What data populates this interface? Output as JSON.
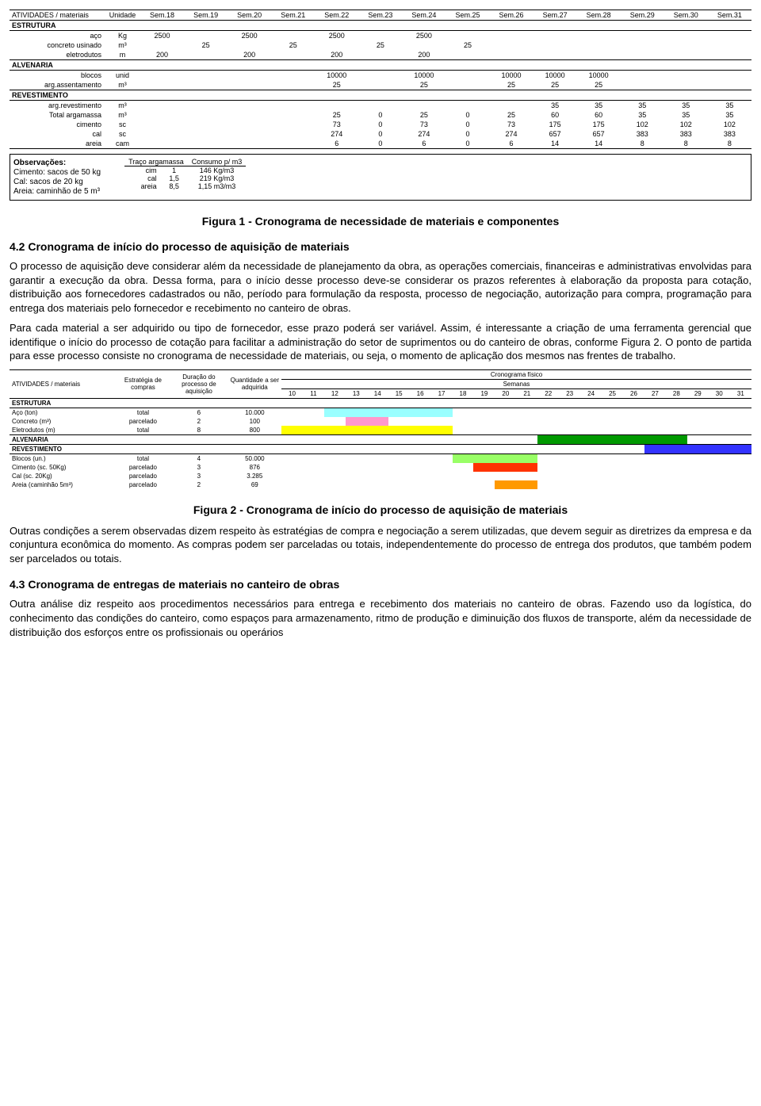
{
  "table1": {
    "col_activity": "ATIVIDADES / materiais",
    "col_unit": "Unidade",
    "weeks": [
      "Sem.18",
      "Sem.19",
      "Sem.20",
      "Sem.21",
      "Sem.22",
      "Sem.23",
      "Sem.24",
      "Sem.25",
      "Sem.26",
      "Sem.27",
      "Sem.28",
      "Sem.29",
      "Sem.30",
      "Sem.31"
    ],
    "sections": [
      {
        "name": "ESTRUTURA",
        "rows": [
          {
            "label": "aço",
            "unit": "Kg",
            "vals": [
              "2500",
              "",
              "2500",
              "",
              "2500",
              "",
              "2500",
              "",
              "",
              "",
              "",
              "",
              "",
              ""
            ]
          },
          {
            "label": "concreto usinado",
            "unit": "m³",
            "vals": [
              "",
              "25",
              "",
              "25",
              "",
              "25",
              "",
              "25",
              "",
              "",
              "",
              "",
              "",
              ""
            ]
          },
          {
            "label": "eletrodutos",
            "unit": "m",
            "vals": [
              "200",
              "",
              "200",
              "",
              "200",
              "",
              "200",
              "",
              "",
              "",
              "",
              "",
              "",
              ""
            ]
          }
        ]
      },
      {
        "name": "ALVENARIA",
        "rows": [
          {
            "label": "blocos",
            "unit": "unid",
            "vals": [
              "",
              "",
              "",
              "",
              "10000",
              "",
              "10000",
              "",
              "10000",
              "10000",
              "10000",
              "",
              "",
              ""
            ]
          },
          {
            "label": "arg.assentamento",
            "unit": "m³",
            "vals": [
              "",
              "",
              "",
              "",
              "25",
              "",
              "25",
              "",
              "25",
              "25",
              "25",
              "",
              "",
              ""
            ]
          }
        ]
      },
      {
        "name": "REVESTIMENTO",
        "rows": [
          {
            "label": "arg.revestimento",
            "unit": "m³",
            "vals": [
              "",
              "",
              "",
              "",
              "",
              "",
              "",
              "",
              "",
              "35",
              "35",
              "35",
              "35",
              "35"
            ]
          },
          {
            "label": "Total argamassa",
            "unit": "m³",
            "vals": [
              "",
              "",
              "",
              "",
              "25",
              "0",
              "25",
              "0",
              "25",
              "60",
              "60",
              "35",
              "35",
              "35"
            ]
          },
          {
            "label": "cimento",
            "unit": "sc",
            "vals": [
              "",
              "",
              "",
              "",
              "73",
              "0",
              "73",
              "0",
              "73",
              "175",
              "175",
              "102",
              "102",
              "102"
            ]
          },
          {
            "label": "cal",
            "unit": "sc",
            "vals": [
              "",
              "",
              "",
              "",
              "274",
              "0",
              "274",
              "0",
              "274",
              "657",
              "657",
              "383",
              "383",
              "383"
            ]
          },
          {
            "label": "areia",
            "unit": "cam",
            "vals": [
              "",
              "",
              "",
              "",
              "6",
              "0",
              "6",
              "0",
              "6",
              "14",
              "14",
              "8",
              "8",
              "8"
            ]
          }
        ]
      }
    ]
  },
  "obs": {
    "title": "Observações:",
    "lines": [
      "Cimento: sacos de 50 kg",
      "Cal: sacos de 20 kg",
      "Areia: caminhão de 5 m³"
    ],
    "t": {
      "h1": "Traço argamassa",
      "h2": "Consumo p/ m3",
      "r": [
        [
          "cim",
          "1",
          "146 Kg/m3"
        ],
        [
          "cal",
          "1,5",
          "219 Kg/m3"
        ],
        [
          "areia",
          "8,5",
          "1,15 m3/m3"
        ]
      ]
    }
  },
  "fig1": "Figura 1 - Cronograma de necessidade de materiais e componentes",
  "h42": "4.2 Cronograma de início do processo de aquisição de materiais",
  "p1": "O processo de aquisição deve considerar além da necessidade de planejamento da obra, as operações comerciais, financeiras e administrativas envolvidas para garantir a execução da obra. Dessa forma, para o início desse processo deve-se considerar os prazos referentes à elaboração da proposta para cotação, distribuição aos fornecedores cadastrados ou não, período para formulação da resposta, processo de negociação, autorização para compra, programação para entrega dos materiais pelo fornecedor e recebimento no canteiro de obras.",
  "p2": "Para cada material a ser adquirido ou tipo de fornecedor, esse prazo poderá ser variável. Assim, é interessante a criação de uma ferramenta gerencial que identifique o início do processo de cotação para facilitar a administração do setor de suprimentos ou do canteiro de obras, conforme Figura 2. O ponto de partida para esse processo consiste no cronograma de necessidade de materiais, ou seja, o momento de aplicação dos mesmos nas frentes de trabalho.",
  "table2": {
    "col_activity": "ATIVIDADES / materiais",
    "col_strat": "Estratégia de compras",
    "col_dur": "Duração do processo de aquisição",
    "col_qty": "Quantidade a ser adquirida",
    "col_cron": "Cronograma físico",
    "col_sem": "Semanas",
    "weeks": [
      "10",
      "11",
      "12",
      "13",
      "14",
      "15",
      "16",
      "17",
      "18",
      "19",
      "20",
      "21",
      "22",
      "23",
      "24",
      "25",
      "26",
      "27",
      "28",
      "29",
      "30",
      "31"
    ],
    "sections": [
      {
        "name": "ESTRUTURA",
        "rows": [
          {
            "label": "Aço (ton)",
            "strat": "total",
            "dur": "6",
            "qty": "10.000",
            "bar": {
              "from": 12,
              "to": 17,
              "cls": "bar-cyan"
            }
          },
          {
            "label": "Concreto (m³)",
            "strat": "parcelado",
            "dur": "2",
            "qty": "100",
            "bar": {
              "from": 13,
              "to": 14,
              "cls": "bar-pink"
            }
          },
          {
            "label": "Eletrodutos (m)",
            "strat": "total",
            "dur": "8",
            "qty": "800",
            "bar": {
              "from": 10,
              "to": 17,
              "cls": "bar-yellow"
            }
          }
        ]
      },
      {
        "name": "ALVENARIA",
        "bar": {
          "from": 22,
          "to": 28,
          "cls": "bar-dgreen"
        },
        "rows": []
      },
      {
        "name": "REVESTIMENTO",
        "bar": {
          "from": 27,
          "to": 31,
          "cls": "bar-blue"
        },
        "rows": [
          {
            "label": "Blocos (un.)",
            "strat": "total",
            "dur": "4",
            "qty": "50.000",
            "bar": {
              "from": 18,
              "to": 21,
              "cls": "bar-lgreen"
            }
          },
          {
            "label": "Cimento (sc. 50Kg)",
            "strat": "parcelado",
            "dur": "3",
            "qty": "876",
            "bar": {
              "from": 19,
              "to": 21,
              "cls": "bar-red"
            }
          },
          {
            "label": "Cal (sc. 20Kg)",
            "strat": "parcelado",
            "dur": "3",
            "qty": "3.285",
            "bar": null
          },
          {
            "label": "Areia (caminhão 5m³)",
            "strat": "parcelado",
            "dur": "2",
            "qty": "69",
            "bar": {
              "from": 20,
              "to": 21,
              "cls": "bar-orange"
            }
          }
        ]
      }
    ]
  },
  "fig2": "Figura 2 - Cronograma de início do processo de aquisição de materiais",
  "p3": "Outras condições a serem observadas dizem respeito às estratégias de compra e negociação a serem utilizadas, que devem seguir as diretrizes da empresa e da conjuntura econômica do momento. As compras podem ser parceladas ou totais, independentemente do processo de entrega dos produtos, que também podem ser parcelados ou totais.",
  "h43": "4.3 Cronograma de entregas de materiais no canteiro de obras",
  "p4": "Outra análise diz respeito aos procedimentos necessários para entrega e recebimento dos materiais no canteiro de obras. Fazendo uso da logística, do conhecimento das condições do canteiro, como espaços para armazenamento, ritmo de produção e diminuição dos fluxos de transporte, além da necessidade de distribuição dos esforços entre os profissionais ou operários"
}
